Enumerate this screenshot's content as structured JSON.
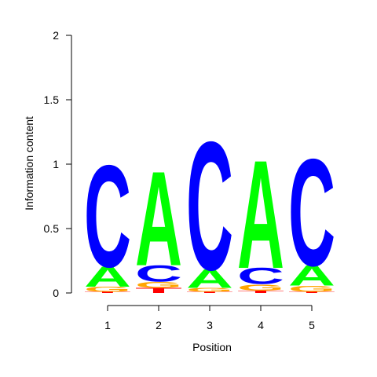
{
  "chart_data": {
    "type": "sequence-logo",
    "title": "",
    "xlabel": "Position",
    "ylabel": "Information content",
    "ylim": [
      0,
      2
    ],
    "y_ticks": [
      "0",
      "0.5",
      "1",
      "1.5",
      "2"
    ],
    "y_tick_values": [
      0,
      0.5,
      1,
      1.5,
      2
    ],
    "positions": [
      "1",
      "2",
      "3",
      "4",
      "5"
    ],
    "colors": {
      "A": "#00ff00",
      "C": "#0000ff",
      "G": "#ffa500",
      "T": "#ff0000"
    },
    "stacks": [
      [
        {
          "letter": "T",
          "height": 0.01
        },
        {
          "letter": "G",
          "height": 0.04
        },
        {
          "letter": "A",
          "height": 0.16
        },
        {
          "letter": "C",
          "height": 0.81
        }
      ],
      [
        {
          "letter": "T",
          "height": 0.04
        },
        {
          "letter": "G",
          "height": 0.05
        },
        {
          "letter": "C",
          "height": 0.13
        },
        {
          "letter": "A",
          "height": 0.75
        }
      ],
      [
        {
          "letter": "T",
          "height": 0.01
        },
        {
          "letter": "G",
          "height": 0.03
        },
        {
          "letter": "A",
          "height": 0.15
        },
        {
          "letter": "C",
          "height": 1.02
        }
      ],
      [
        {
          "letter": "T",
          "height": 0.02
        },
        {
          "letter": "G",
          "height": 0.05
        },
        {
          "letter": "C",
          "height": 0.13
        },
        {
          "letter": "A",
          "height": 0.86
        }
      ],
      [
        {
          "letter": "T",
          "height": 0.01
        },
        {
          "letter": "G",
          "height": 0.05
        },
        {
          "letter": "A",
          "height": 0.16
        },
        {
          "letter": "C",
          "height": 0.85
        }
      ]
    ]
  }
}
